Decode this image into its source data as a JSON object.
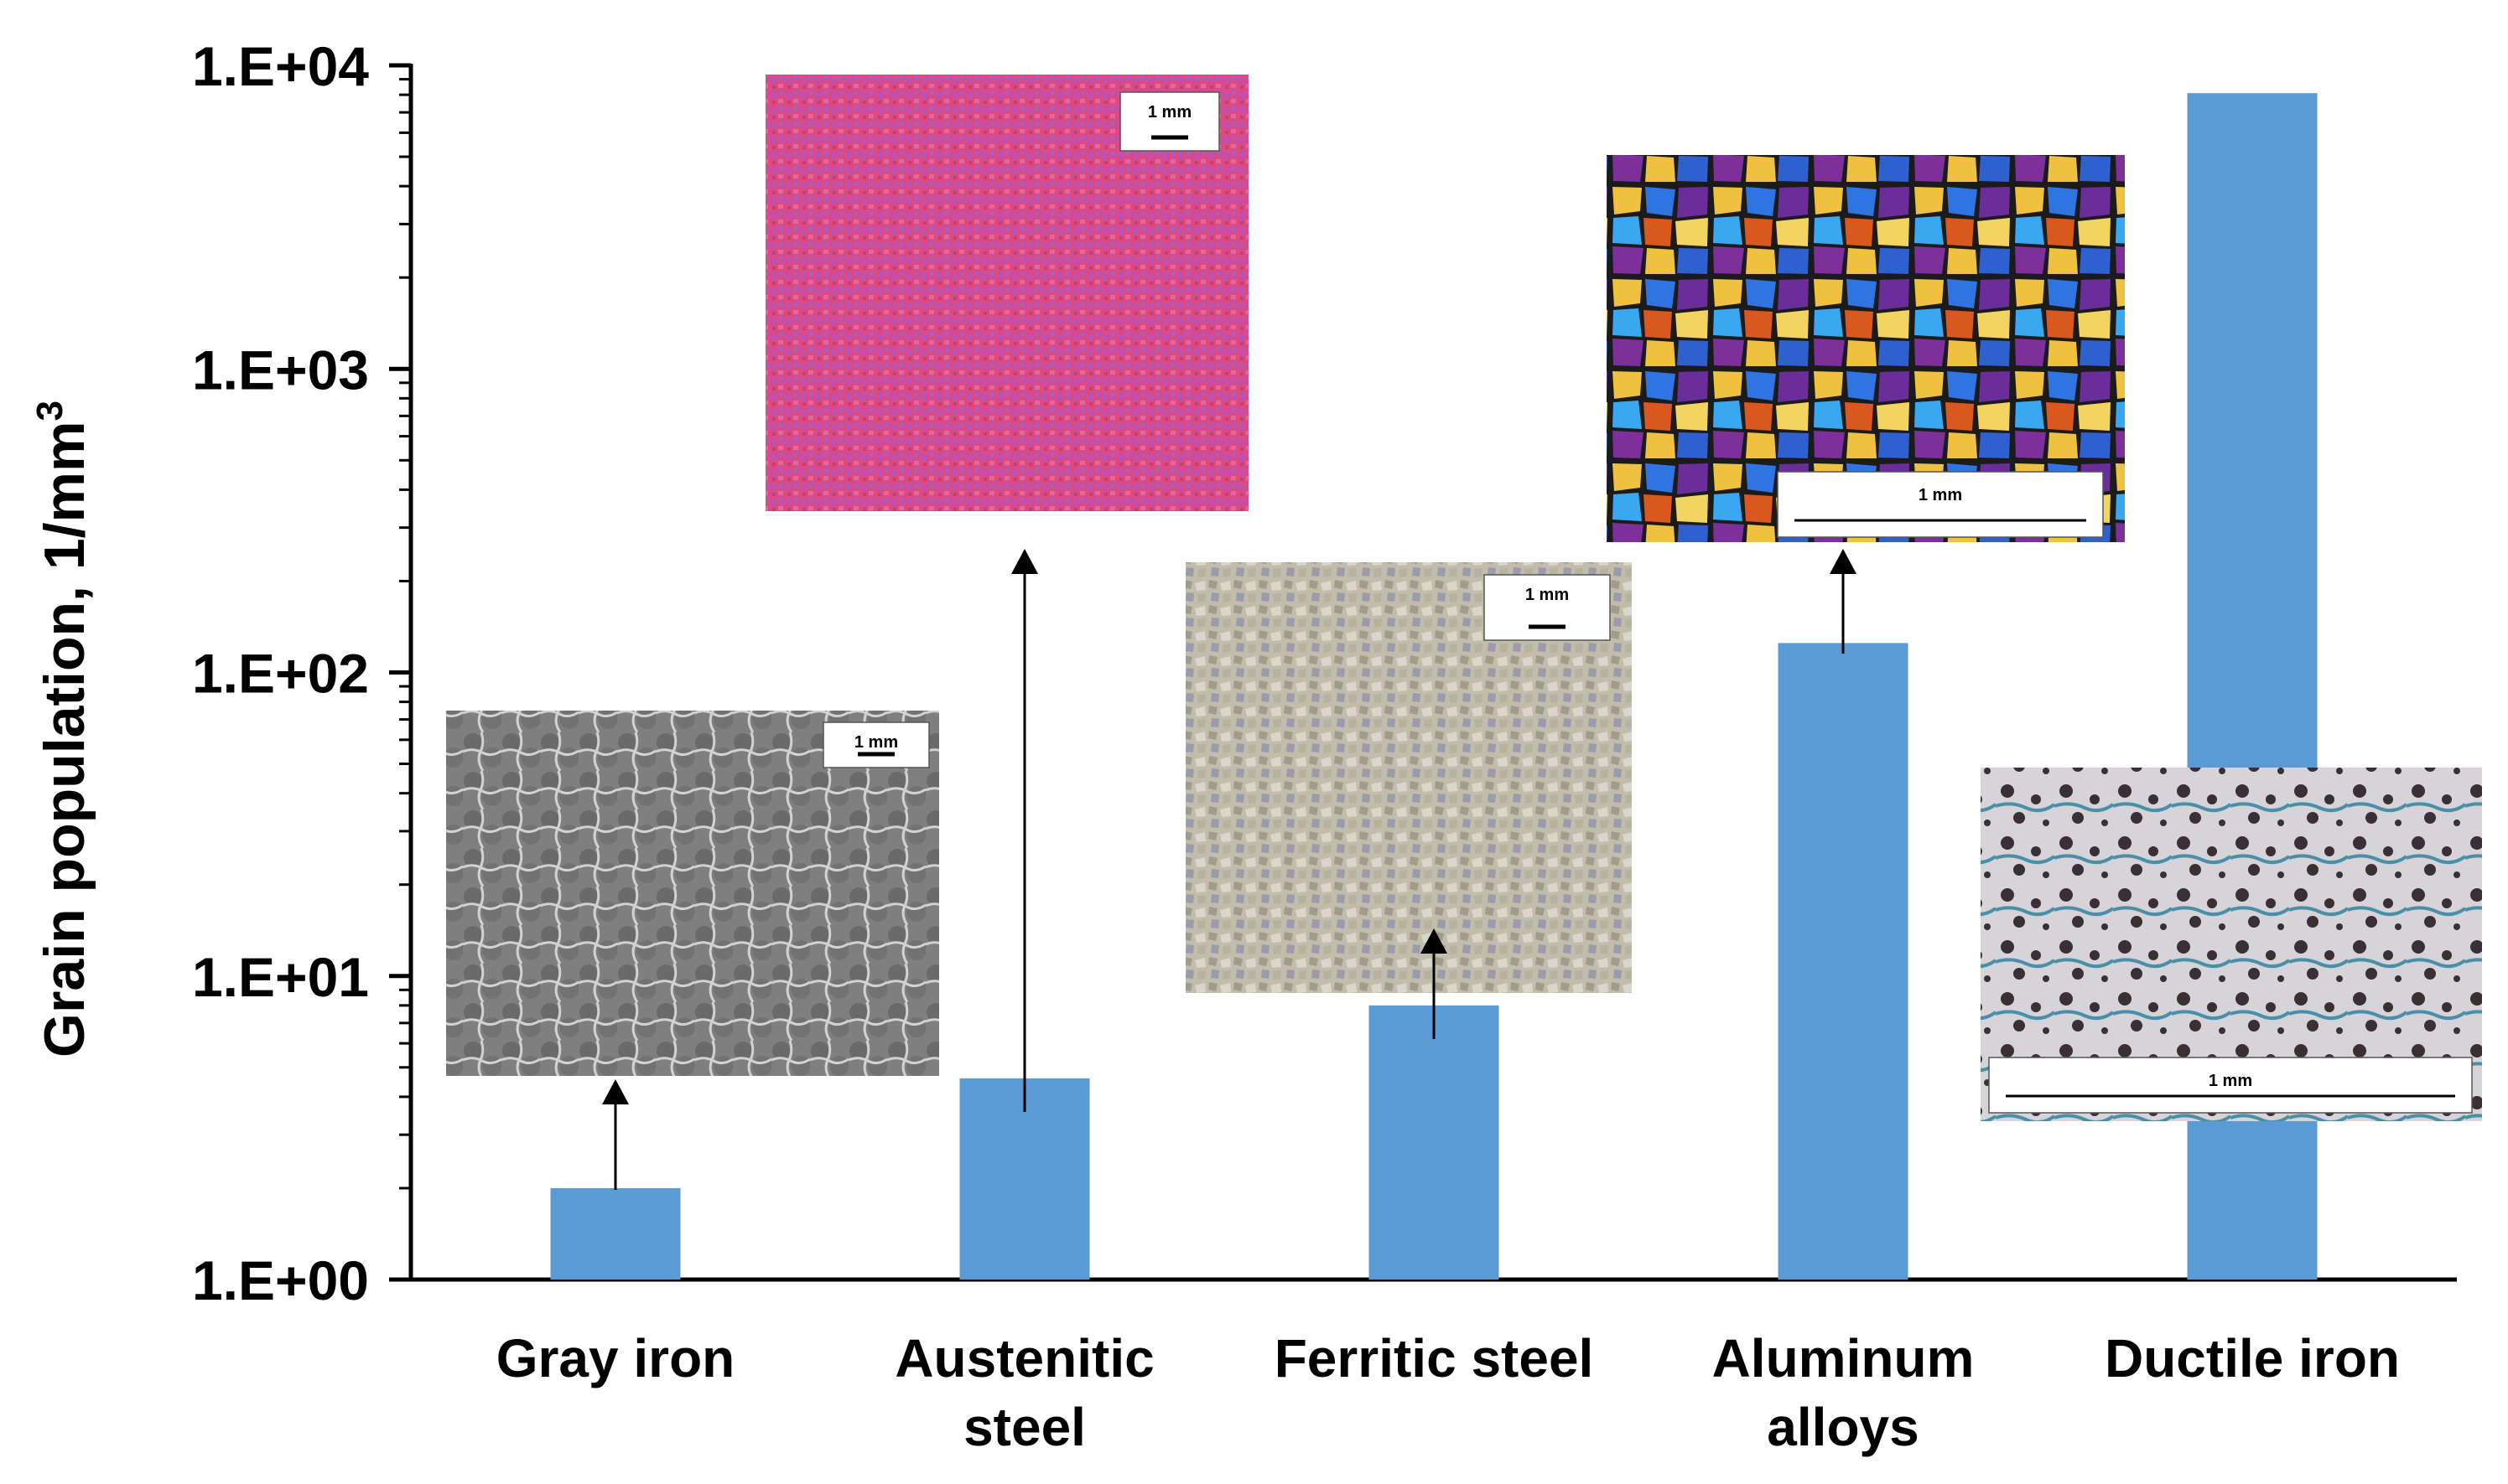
{
  "chart_data": {
    "type": "bar",
    "title": "",
    "xlabel": "",
    "ylabel": "Grain population, 1/mm",
    "ylabel_superscript": "3",
    "yscale": "log",
    "ylim": [
      1,
      10000
    ],
    "yticks": [
      "1.E+00",
      "1.E+01",
      "1.E+02",
      "1.E+03",
      "1.E+04"
    ],
    "grid": false,
    "legend": "none",
    "bar_color": "#5B9BD5",
    "categories": [
      [
        "Gray iron"
      ],
      [
        "Austenitic",
        "steel"
      ],
      [
        "Ferritic steel"
      ],
      [
        "Aluminum",
        "alloys"
      ],
      [
        "Ductile iron"
      ]
    ],
    "values": [
      2,
      4.6,
      8,
      125,
      8100
    ]
  },
  "insets": [
    {
      "name": "gray-iron-micrograph",
      "scale_label": "1 mm",
      "palette": [
        "#8a8a8a",
        "#c9c9c9",
        "#6f6f6f"
      ]
    },
    {
      "name": "austenitic-steel-micrograph",
      "scale_label": "1 mm",
      "palette": [
        "#e04a86",
        "#b44fc4",
        "#8a66e0"
      ]
    },
    {
      "name": "ferritic-steel-micrograph",
      "scale_label": "1 mm",
      "palette": [
        "#c9c3b1",
        "#8f8a7d",
        "#a6a6b6"
      ]
    },
    {
      "name": "aluminum-alloys-micrograph",
      "scale_label": "1 mm",
      "palette": [
        "#f0c040",
        "#2f74e0",
        "#6a2d9a"
      ]
    },
    {
      "name": "ductile-iron-micrograph",
      "scale_label": "1 mm",
      "palette": [
        "#d8d6da",
        "#3a2f33",
        "#4a8fa8"
      ]
    }
  ]
}
